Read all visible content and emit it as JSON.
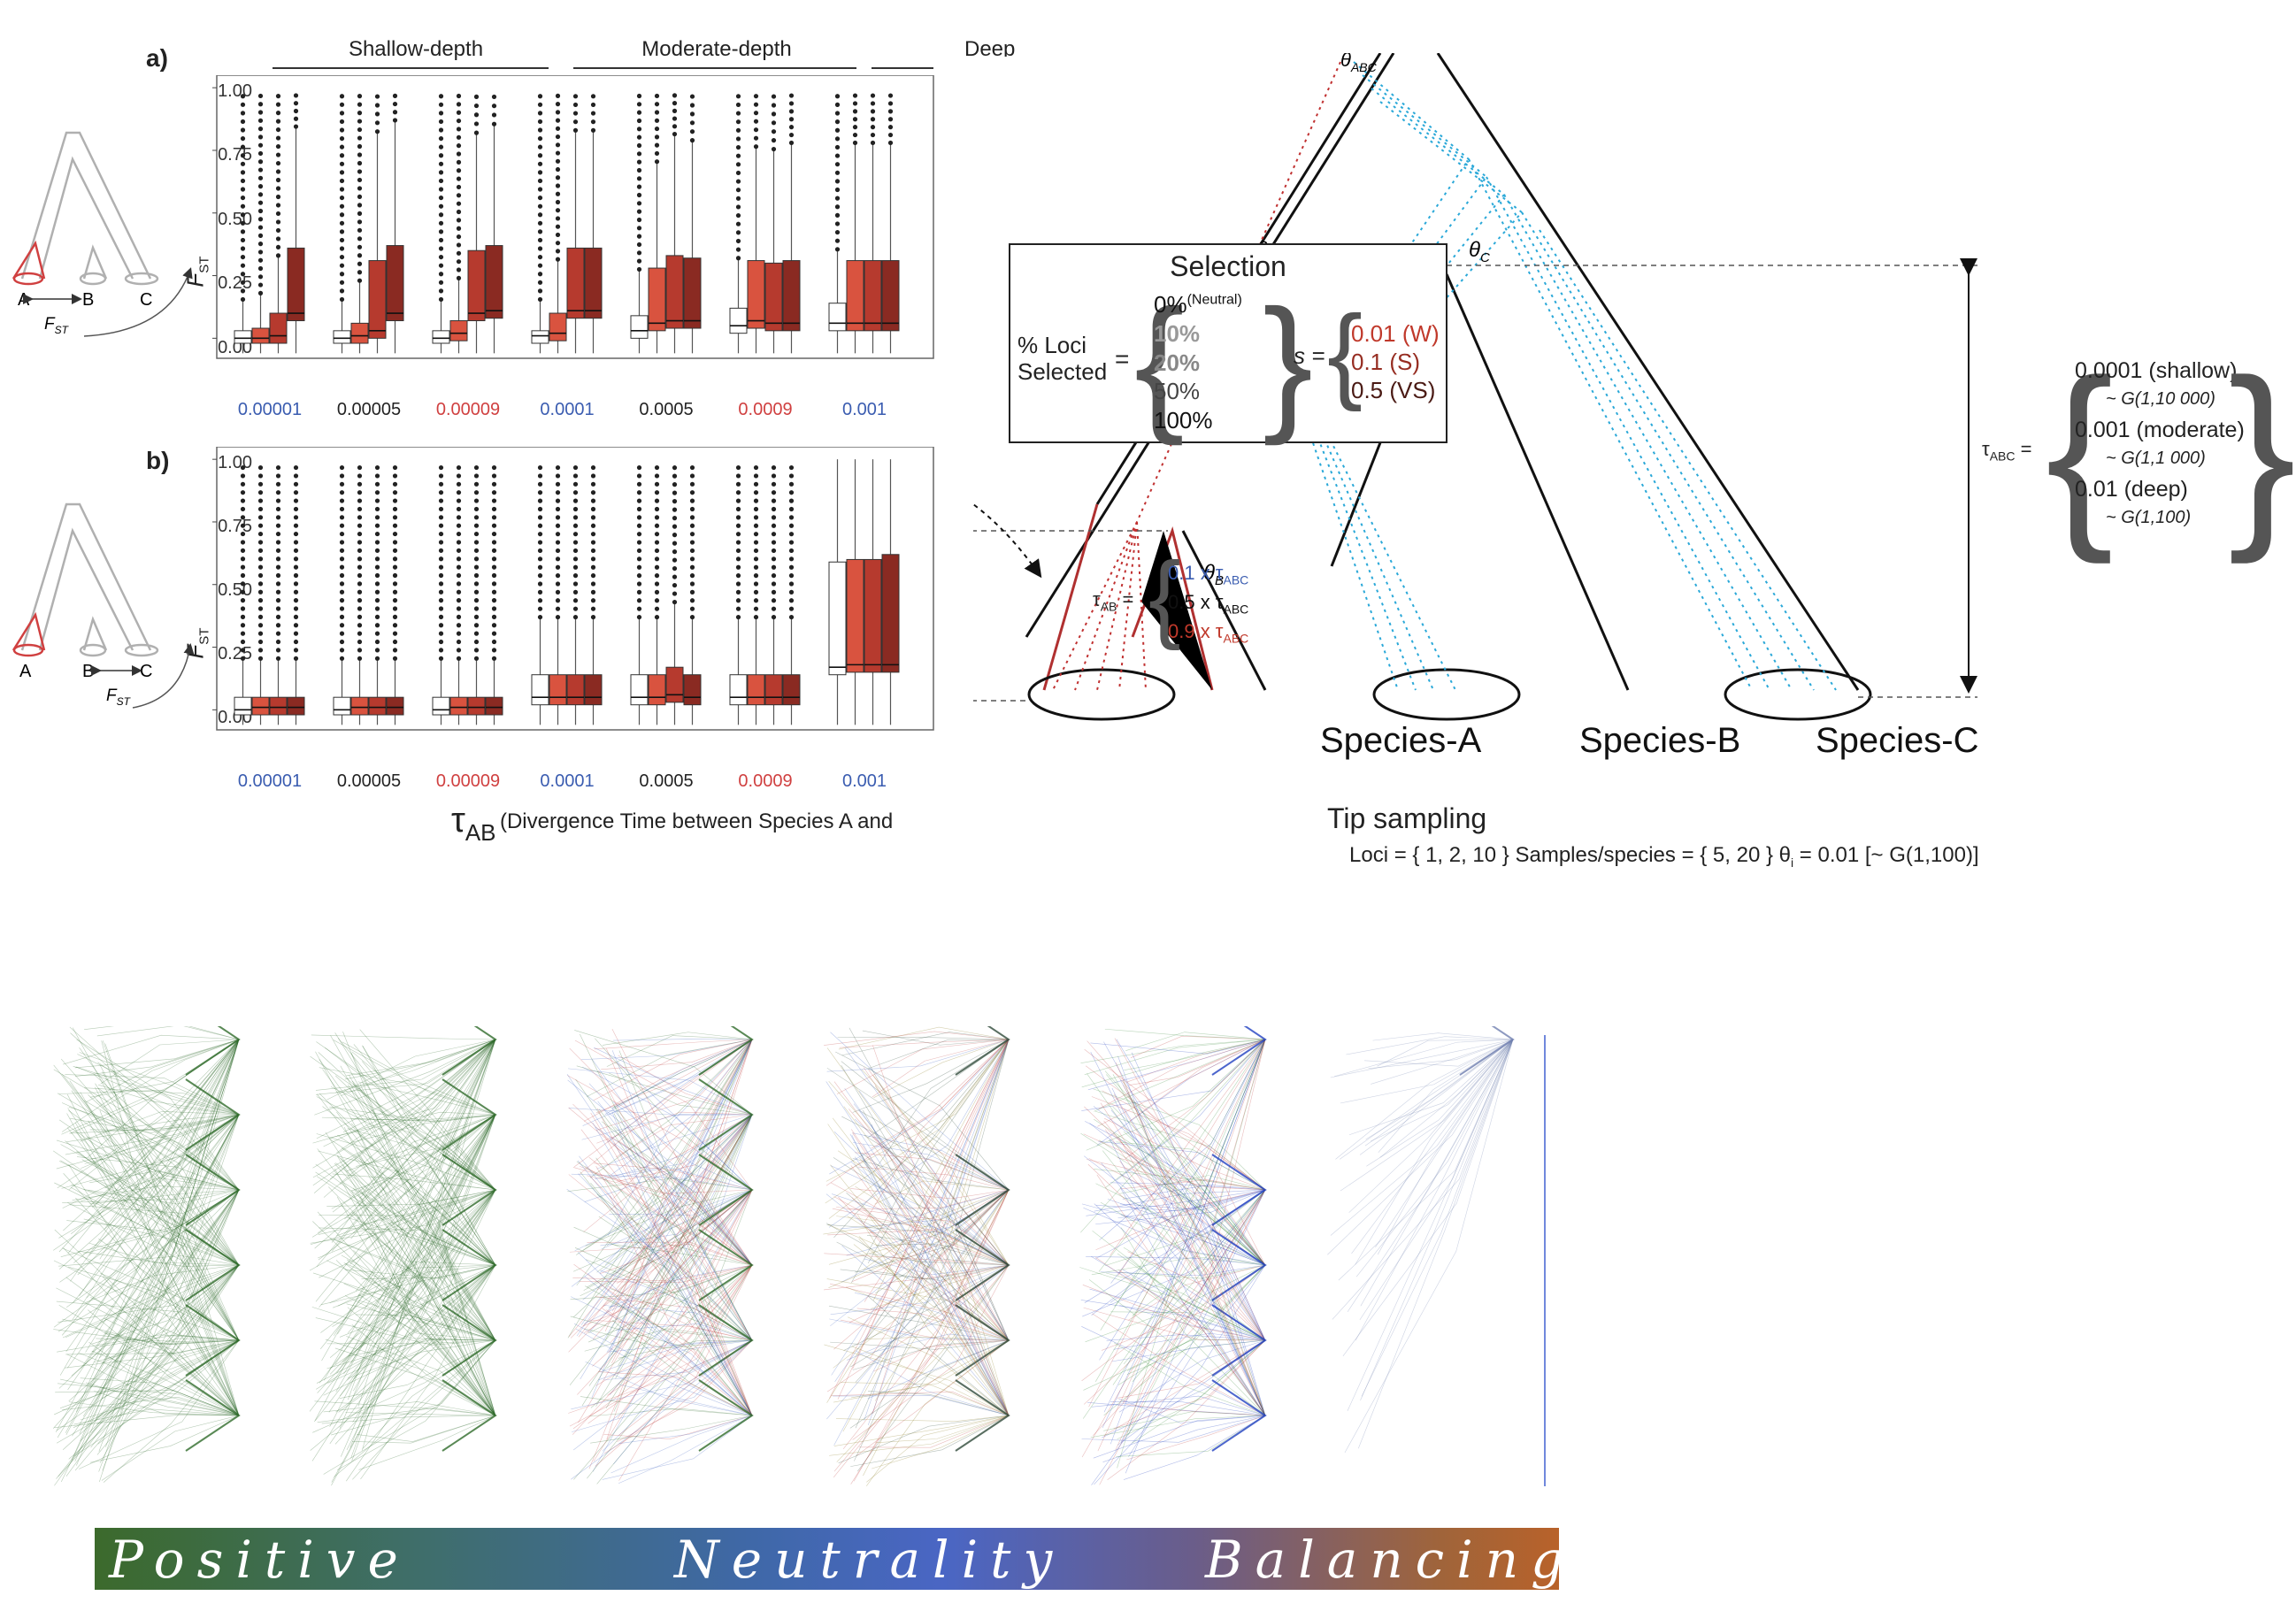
{
  "panel_a": {
    "letter": "a)",
    "depth_labels": [
      "Shallow-depth",
      "Moderate-depth",
      "Deep"
    ]
  },
  "panel_b": {
    "letter": "b)"
  },
  "y_ticks": [
    "1.00",
    "0.75",
    "0.50",
    "0.25",
    "0.00"
  ],
  "fst_label": "F",
  "fst_sub": "ST",
  "x_ticks": [
    {
      "label": "0.00001",
      "color": "#3a5cb0"
    },
    {
      "label": "0.00005",
      "color": "#222222"
    },
    {
      "label": "0.00009",
      "color": "#d04040"
    },
    {
      "label": "0.0001",
      "color": "#3a5cb0"
    },
    {
      "label": "0.0005",
      "color": "#222222"
    },
    {
      "label": "0.0009",
      "color": "#d04040"
    },
    {
      "label": "0.001",
      "color": "#3a5cb0"
    }
  ],
  "x_axis_title_tau": "τ",
  "x_axis_title_sub": "AB",
  "x_axis_title_text": "(Divergence Time between Species A and",
  "tree_labels": {
    "a": "A",
    "b": "B",
    "c": "C"
  },
  "selection": {
    "title": "Selection",
    "loci_label_1": "% Loci",
    "loci_label_2": "Selected",
    "eq": "=",
    "percents": [
      "0%",
      "10%",
      "20%",
      "50%",
      "100%"
    ],
    "neutral_note": "(Neutral)",
    "s_label": "s =",
    "s_values": [
      "0.01 (W)",
      "0.1 (S)",
      "0.5 (VS)"
    ]
  },
  "tau_ab": {
    "label": "τ",
    "sub": "AB",
    "eq": "=",
    "values": [
      "0.1 x τ",
      "0.5 x τ",
      "0.9 x τ"
    ],
    "value_sub": "ABC"
  },
  "tau_abc": {
    "label": "τ",
    "sub": "ABC",
    "eq": "=",
    "values": [
      "0.0001 (shallow)",
      "0.001 (moderate)",
      "0.01 (deep)"
    ],
    "priors": [
      "~ G(1,10 000)",
      "~ G(1,1 000)",
      "~ G(1,100)"
    ]
  },
  "theta_labels": {
    "abc": "ABC",
    "ab": "AB",
    "c": "C",
    "a": "A",
    "b": "B",
    "theta": "θ"
  },
  "species": [
    "Species-A",
    "Species-B",
    "Species-C"
  ],
  "tip_sampling": {
    "title": "Tip sampling",
    "line": "Loci = { 1, 2, 10 }   Samples/species = { 5, 20 }   θ",
    "theta_sub": "i",
    "line_end": " = 0.01 [~ G(1,100)]"
  },
  "banner": {
    "left": "Positive",
    "center": "Neutrality",
    "right": "Balancing"
  },
  "chart_data": [
    {
      "type": "box",
      "panel": "a",
      "ylabel": "FST",
      "ylim": [
        0,
        1
      ],
      "categories": [
        "0.00001",
        "0.00005",
        "0.00009",
        "0.0001",
        "0.0005",
        "0.0009",
        "0.001"
      ],
      "groups": [
        "Shallow-depth",
        "Moderate-depth",
        "Deep"
      ],
      "series_colors": [
        "#ffffff",
        "#d9533f",
        "#b63a2e",
        "#8a2a22"
      ],
      "medians": [
        [
          0.0,
          0.0,
          0.01,
          0.1
        ],
        [
          0.0,
          0.01,
          0.03,
          0.1
        ],
        [
          0.0,
          0.02,
          0.1,
          0.11
        ],
        [
          0.01,
          0.02,
          0.11,
          0.11
        ],
        [
          0.03,
          0.06,
          0.07,
          0.07
        ],
        [
          0.05,
          0.07,
          0.06,
          0.06
        ],
        [
          0.06,
          0.06,
          0.06,
          0.06
        ]
      ],
      "q3": [
        [
          0.03,
          0.04,
          0.1,
          0.36
        ],
        [
          0.03,
          0.06,
          0.31,
          0.37
        ],
        [
          0.03,
          0.07,
          0.35,
          0.37
        ],
        [
          0.03,
          0.1,
          0.36,
          0.36
        ],
        [
          0.09,
          0.28,
          0.33,
          0.32
        ],
        [
          0.12,
          0.31,
          0.3,
          0.31
        ],
        [
          0.14,
          0.31,
          0.31,
          0.31
        ]
      ]
    },
    {
      "type": "box",
      "panel": "b",
      "ylabel": "FST",
      "ylim": [
        0,
        1
      ],
      "categories": [
        "0.00001",
        "0.00005",
        "0.00009",
        "0.0001",
        "0.0005",
        "0.0009",
        "0.001"
      ],
      "medians": [
        [
          0.0,
          0.01,
          0.01,
          0.01
        ],
        [
          0.0,
          0.01,
          0.01,
          0.01
        ],
        [
          0.0,
          0.01,
          0.01,
          0.01
        ],
        [
          0.05,
          0.05,
          0.05,
          0.05
        ],
        [
          0.05,
          0.05,
          0.06,
          0.05
        ],
        [
          0.05,
          0.05,
          0.05,
          0.05
        ],
        [
          0.17,
          0.18,
          0.18,
          0.18
        ]
      ],
      "q3": [
        [
          0.05,
          0.05,
          0.05,
          0.05
        ],
        [
          0.05,
          0.05,
          0.05,
          0.05
        ],
        [
          0.05,
          0.05,
          0.05,
          0.05
        ],
        [
          0.14,
          0.14,
          0.14,
          0.14
        ],
        [
          0.14,
          0.14,
          0.17,
          0.14
        ],
        [
          0.14,
          0.14,
          0.14,
          0.14
        ],
        [
          0.59,
          0.6,
          0.6,
          0.62
        ]
      ]
    }
  ]
}
